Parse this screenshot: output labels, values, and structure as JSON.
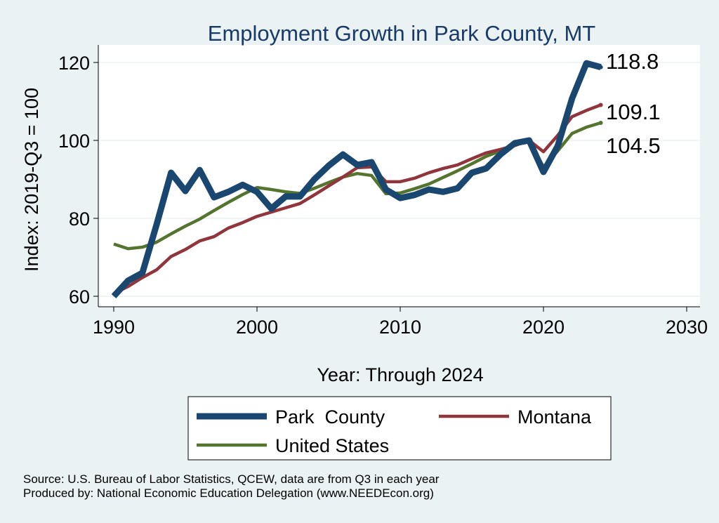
{
  "chart_data": {
    "type": "line",
    "title": "Employment Growth in Park County, MT",
    "xlabel": "Year: Through 2024",
    "ylabel": "Index: 2019-Q3 = 100",
    "xlim": [
      1989,
      2031
    ],
    "ylim": [
      58,
      124
    ],
    "xticks": [
      1990,
      2000,
      2010,
      2020,
      2030
    ],
    "yticks": [
      60,
      80,
      100,
      120
    ],
    "grid": true,
    "legend_position": "bottom",
    "x": [
      1990,
      1991,
      1992,
      1993,
      1994,
      1995,
      1996,
      1997,
      1998,
      1999,
      2000,
      2001,
      2002,
      2003,
      2004,
      2005,
      2006,
      2007,
      2008,
      2009,
      2010,
      2011,
      2012,
      2013,
      2014,
      2015,
      2016,
      2017,
      2018,
      2019,
      2020,
      2021,
      2022,
      2023,
      2024
    ],
    "series": [
      {
        "name": "Park  County",
        "color": "#1a476f",
        "width": 9,
        "end_label": "118.8",
        "values": [
          60,
          64,
          66,
          78.5,
          91.7,
          87,
          92.4,
          85.4,
          86.8,
          88.6,
          86.8,
          82.5,
          85.6,
          85.6,
          90,
          93.5,
          96.4,
          93.7,
          94.4,
          87.4,
          85.2,
          86,
          87.4,
          86.8,
          87.7,
          91.7,
          92.8,
          96.4,
          99.3,
          100,
          91.9,
          98.6,
          110.8,
          119.8,
          118.8
        ]
      },
      {
        "name": "Montana",
        "color": "#90353b",
        "width": 4.5,
        "end_label": "109.1",
        "values": [
          60.7,
          62.5,
          64.8,
          66.8,
          70.2,
          72,
          74.2,
          75.3,
          77.5,
          78.9,
          80.5,
          81.6,
          82.7,
          83.8,
          86,
          88.3,
          90.6,
          93,
          93.2,
          89.4,
          89.4,
          90.3,
          91.7,
          92.8,
          93.7,
          95.3,
          96.8,
          97.7,
          98.7,
          100,
          97.1,
          101.3,
          106.1,
          107.7,
          109.1
        ]
      },
      {
        "name": "United States",
        "color": "#55752f",
        "width": 4.5,
        "end_label": "104.5",
        "values": [
          73.4,
          72.2,
          72.6,
          73.9,
          76,
          78,
          79.8,
          82,
          84.1,
          86.1,
          87.9,
          87.4,
          86.8,
          86.4,
          87.7,
          89.2,
          90.6,
          91.5,
          91,
          86.3,
          86.5,
          87.6,
          88.8,
          90.5,
          92.2,
          94,
          95.9,
          97.3,
          98.7,
          100,
          93.2,
          97.3,
          101.8,
          103.4,
          104.5
        ]
      }
    ],
    "notes": [
      "Source: U.S. Bureau of Labor Statistics, QCEW, data are from Q3 in each year",
      "Produced by: National Economic Education Delegation (www.NEEDEcon.org)"
    ]
  }
}
